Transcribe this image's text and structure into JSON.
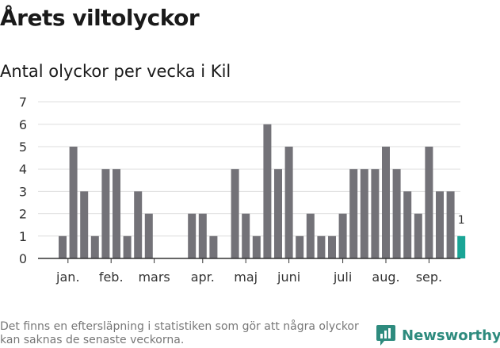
{
  "title": "Årets viltolyckor",
  "subtitle": "Antal olyckor per vecka i Kil",
  "footnote": "Det finns en eftersläpning i statistiken som gör att några olyckor kan saknas de senaste veckorna.",
  "brand": {
    "name": "Newsworthy",
    "color": "#2e8b7e"
  },
  "chart_data": {
    "type": "bar",
    "title": "Årets viltolyckor",
    "subtitle": "Antal olyckor per vecka i Kil",
    "ylim": [
      0,
      7
    ],
    "yticks": [
      0,
      1,
      2,
      3,
      4,
      5,
      6,
      7
    ],
    "grid": true,
    "x": [
      1,
      2,
      3,
      4,
      5,
      6,
      7,
      8,
      9,
      10,
      11,
      12,
      13,
      14,
      15,
      16,
      17,
      18,
      19,
      20,
      21,
      22,
      23,
      24,
      25,
      26,
      27,
      28,
      29,
      30,
      31,
      32,
      33,
      34,
      35,
      36,
      37,
      38
    ],
    "values": [
      1,
      5,
      3,
      1,
      4,
      4,
      1,
      3,
      2,
      0,
      0,
      0,
      2,
      2,
      1,
      0,
      4,
      2,
      1,
      6,
      4,
      5,
      1,
      2,
      1,
      1,
      2,
      4,
      4,
      4,
      5,
      4,
      3,
      2,
      5,
      3,
      3,
      1
    ],
    "month_labels": [
      {
        "label": "jan.",
        "week": 1.5
      },
      {
        "label": "feb.",
        "week": 5.5
      },
      {
        "label": "mars",
        "week": 9.5
      },
      {
        "label": "apr.",
        "week": 14.0
      },
      {
        "label": "maj",
        "week": 18.0
      },
      {
        "label": "juni",
        "week": 22.0
      },
      {
        "label": "juli",
        "week": 27.0
      },
      {
        "label": "aug.",
        "week": 31.0
      },
      {
        "label": "sep.",
        "week": 35.0
      }
    ],
    "bar_color": "#737278",
    "highlight_color": "#1aa596",
    "highlight_index": 37,
    "highlight_label": "1",
    "grid_color": "#dddddd"
  }
}
